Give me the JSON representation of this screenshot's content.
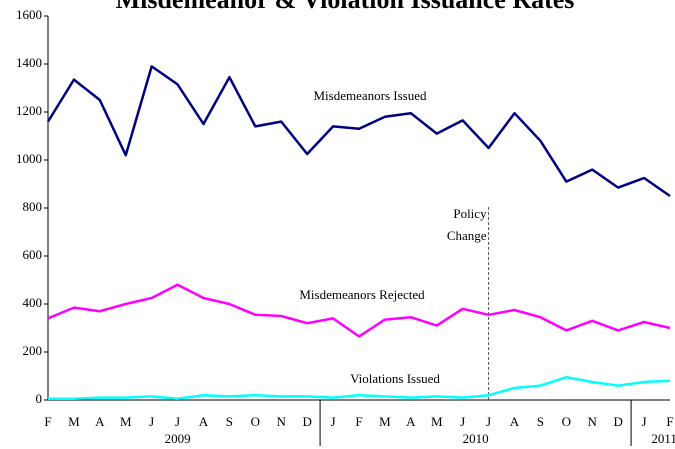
{
  "chart_data": {
    "type": "line",
    "title": "Misdemeanor & Violation Issuance Rates",
    "categories": [
      "F",
      "M",
      "A",
      "M",
      "J",
      "J",
      "A",
      "S",
      "O",
      "N",
      "D",
      "J",
      "F",
      "M",
      "A",
      "M",
      "J",
      "J",
      "A",
      "S",
      "O",
      "N",
      "D",
      "J",
      "F"
    ],
    "years": [
      "2009",
      "2010",
      "2011"
    ],
    "series": [
      {
        "name": "Misdemeanors Issued",
        "color": "#000080",
        "values": [
          1160,
          1335,
          1250,
          1020,
          1390,
          1315,
          1150,
          1345,
          1140,
          1160,
          1025,
          1140,
          1130,
          1180,
          1195,
          1110,
          1165,
          1050,
          1195,
          1080,
          910,
          960,
          885,
          925,
          850
        ]
      },
      {
        "name": "Misdemeanors Rejected",
        "color": "#ff00ff",
        "values": [
          340,
          385,
          370,
          400,
          425,
          480,
          425,
          400,
          355,
          350,
          320,
          340,
          265,
          335,
          345,
          310,
          380,
          355,
          375,
          345,
          290,
          330,
          290,
          325,
          300
        ]
      },
      {
        "name": "Violations Issued",
        "color": "#00ffff",
        "values": [
          5,
          5,
          10,
          10,
          15,
          5,
          20,
          15,
          20,
          15,
          15,
          10,
          20,
          15,
          10,
          15,
          10,
          20,
          50,
          60,
          95,
          75,
          60,
          75,
          80
        ]
      }
    ],
    "policy_change": {
      "label": [
        "Policy",
        "Change"
      ],
      "category_index": 17
    },
    "ylim": [
      0,
      1600
    ],
    "yticks": [
      0,
      200,
      400,
      600,
      800,
      1000,
      1200,
      1400,
      1600
    ]
  }
}
